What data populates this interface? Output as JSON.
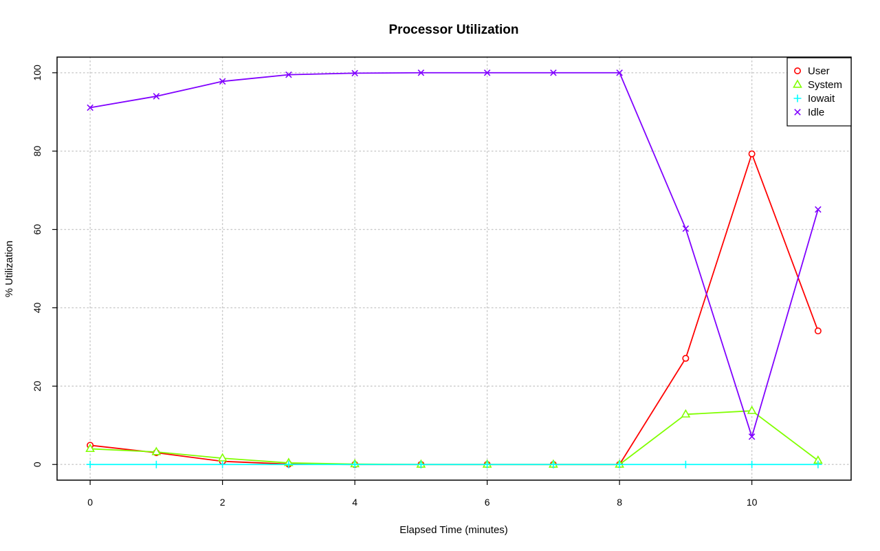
{
  "chart_data": {
    "type": "line",
    "title": "Processor Utilization",
    "xlabel": "Elapsed Time (minutes)",
    "ylabel": "% Utilization",
    "x": [
      0,
      1,
      2,
      3,
      4,
      5,
      6,
      7,
      8,
      9,
      10,
      11
    ],
    "xlim": [
      -0.5,
      11.5
    ],
    "ylim": [
      -4,
      104
    ],
    "xticks": [
      0,
      2,
      4,
      6,
      8,
      10
    ],
    "yticks": [
      0,
      20,
      40,
      60,
      80,
      100
    ],
    "grid": true,
    "legend_position": "top-right",
    "series": [
      {
        "name": "User",
        "marker": "circle",
        "color": "#ff0000",
        "values": [
          4.9,
          3.0,
          0.8,
          0.1,
          0.0,
          0.0,
          0.0,
          0.0,
          0.0,
          27.1,
          79.3,
          34.1
        ]
      },
      {
        "name": "System",
        "marker": "triangle",
        "color": "#80ff00",
        "values": [
          4.0,
          3.2,
          1.6,
          0.4,
          0.1,
          0.0,
          0.0,
          0.0,
          0.0,
          12.8,
          13.7,
          1.0
        ]
      },
      {
        "name": "Iowait",
        "marker": "plus",
        "color": "#00ffff",
        "values": [
          0,
          0,
          0,
          0,
          0,
          0,
          0,
          0,
          0,
          0,
          0,
          0
        ]
      },
      {
        "name": "Idle",
        "marker": "cross",
        "color": "#8000ff",
        "values": [
          91.1,
          94.0,
          97.8,
          99.5,
          99.9,
          100,
          100,
          100,
          100,
          60.2,
          7.1,
          65.1
        ]
      }
    ]
  }
}
